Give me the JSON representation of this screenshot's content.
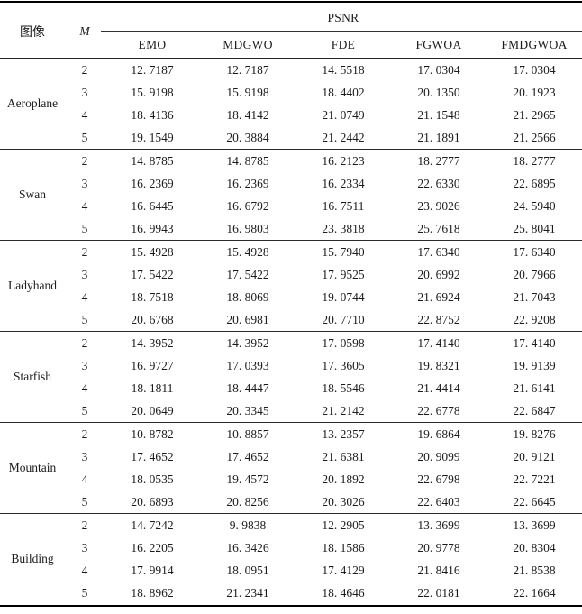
{
  "table": {
    "image_column_header": "图像",
    "m_column_header": "M",
    "group_header": "PSNR",
    "algorithm_headers": [
      "EMO",
      "MDGWO",
      "FDE",
      "FGWOA",
      "FMDGWOA"
    ],
    "sections": [
      {
        "image": "Aeroplane",
        "rows": [
          {
            "m": "2",
            "values": [
              "12. 7187",
              "12. 7187",
              "14. 5518",
              "17. 0304",
              "17. 0304"
            ]
          },
          {
            "m": "3",
            "values": [
              "15. 9198",
              "15. 9198",
              "18. 4402",
              "20. 1350",
              "20. 1923"
            ]
          },
          {
            "m": "4",
            "values": [
              "18. 4136",
              "18. 4142",
              "21. 0749",
              "21. 1548",
              "21. 2965"
            ]
          },
          {
            "m": "5",
            "values": [
              "19. 1549",
              "20. 3884",
              "21. 2442",
              "21. 1891",
              "21. 2566"
            ]
          }
        ]
      },
      {
        "image": "Swan",
        "rows": [
          {
            "m": "2",
            "values": [
              "14. 8785",
              "14. 8785",
              "16. 2123",
              "18. 2777",
              "18. 2777"
            ]
          },
          {
            "m": "3",
            "values": [
              "16. 2369",
              "16. 2369",
              "16. 2334",
              "22. 6330",
              "22. 6895"
            ]
          },
          {
            "m": "4",
            "values": [
              "16. 6445",
              "16. 6792",
              "16. 7511",
              "23. 9026",
              "24. 5940"
            ]
          },
          {
            "m": "5",
            "values": [
              "16. 9943",
              "16. 9803",
              "23. 3818",
              "25. 7618",
              "25. 8041"
            ]
          }
        ]
      },
      {
        "image": "Ladyhand",
        "rows": [
          {
            "m": "2",
            "values": [
              "15. 4928",
              "15. 4928",
              "15. 7940",
              "17. 6340",
              "17. 6340"
            ]
          },
          {
            "m": "3",
            "values": [
              "17. 5422",
              "17. 5422",
              "17. 9525",
              "20. 6992",
              "20. 7966"
            ]
          },
          {
            "m": "4",
            "values": [
              "18. 7518",
              "18. 8069",
              "19. 0744",
              "21. 6924",
              "21. 7043"
            ]
          },
          {
            "m": "5",
            "values": [
              "20. 6768",
              "20. 6981",
              "20. 7710",
              "22. 8752",
              "22. 9208"
            ]
          }
        ]
      },
      {
        "image": "Starfish",
        "rows": [
          {
            "m": "2",
            "values": [
              "14. 3952",
              "14. 3952",
              "17. 0598",
              "17. 4140",
              "17. 4140"
            ]
          },
          {
            "m": "3",
            "values": [
              "16. 9727",
              "17. 0393",
              "17. 3605",
              "19. 8321",
              "19. 9139"
            ]
          },
          {
            "m": "4",
            "values": [
              "18. 1811",
              "18. 4447",
              "18. 5546",
              "21. 4414",
              "21. 6141"
            ]
          },
          {
            "m": "5",
            "values": [
              "20. 0649",
              "20. 3345",
              "21. 2142",
              "22. 6778",
              "22. 6847"
            ]
          }
        ]
      },
      {
        "image": "Mountain",
        "rows": [
          {
            "m": "2",
            "values": [
              "10. 8782",
              "10. 8857",
              "13. 2357",
              "19. 6864",
              "19. 8276"
            ]
          },
          {
            "m": "3",
            "values": [
              "17. 4652",
              "17. 4652",
              "21. 6381",
              "20. 9099",
              "20. 9121"
            ]
          },
          {
            "m": "4",
            "values": [
              "18. 0535",
              "19. 4572",
              "20. 1892",
              "22. 6798",
              "22. 7221"
            ]
          },
          {
            "m": "5",
            "values": [
              "20. 6893",
              "20. 8256",
              "20. 3026",
              "22. 6403",
              "22. 6645"
            ]
          }
        ]
      },
      {
        "image": "Building",
        "rows": [
          {
            "m": "2",
            "values": [
              "14. 7242",
              "9. 9838",
              "12. 2905",
              "13. 3699",
              "13. 3699"
            ]
          },
          {
            "m": "3",
            "values": [
              "16. 2205",
              "16. 3426",
              "18. 1586",
              "20. 9778",
              "20. 8304"
            ]
          },
          {
            "m": "4",
            "values": [
              "17. 9914",
              "18. 0951",
              "17. 4129",
              "21. 8416",
              "21. 8538"
            ]
          },
          {
            "m": "5",
            "values": [
              "18. 8962",
              "21. 2341",
              "18. 4646",
              "22. 0181",
              "22. 1664"
            ]
          }
        ]
      }
    ]
  }
}
